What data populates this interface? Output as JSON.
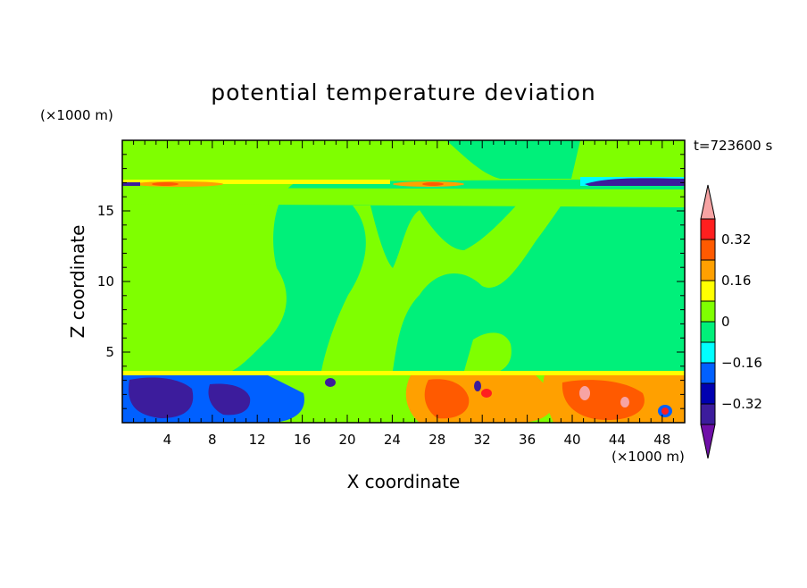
{
  "chart_data": {
    "type": "heatmap",
    "title": "potential temperature deviation",
    "xlabel": "X coordinate",
    "ylabel": "Z coordinate",
    "x_unit": "(×1000 m)",
    "y_unit": "(×1000 m)",
    "time_label": "t=723600 s",
    "xlim": [
      0,
      50
    ],
    "ylim": [
      0,
      20
    ],
    "xticks": [
      "4",
      "8",
      "12",
      "16",
      "20",
      "24",
      "28",
      "32",
      "36",
      "40",
      "44",
      "48"
    ],
    "yticks": [
      "5",
      "10",
      "15"
    ],
    "colorbar": {
      "levels": [
        -0.48,
        -0.4,
        -0.32,
        -0.24,
        -0.16,
        -0.08,
        0,
        0.08,
        0.16,
        0.24,
        0.32,
        0.4
      ],
      "labels": [
        "0.32",
        "0.16",
        "0",
        "−0.16",
        "−0.32"
      ],
      "colors_top_to_bottom": [
        "#f7a3a3",
        "#ff1f1f",
        "#ff5a00",
        "#ffa000",
        "#ffff00",
        "#7fff00",
        "#00f07a",
        "#00ffff",
        "#0060ff",
        "#0000b0",
        "#3c1c9c",
        "#6f0fa8"
      ]
    },
    "field_colors": {
      "background": "#00f07a",
      "positive_small": "#7fff00",
      "negative_deep": "#3c1c9c",
      "positive_strong": "#ff5a00"
    }
  }
}
